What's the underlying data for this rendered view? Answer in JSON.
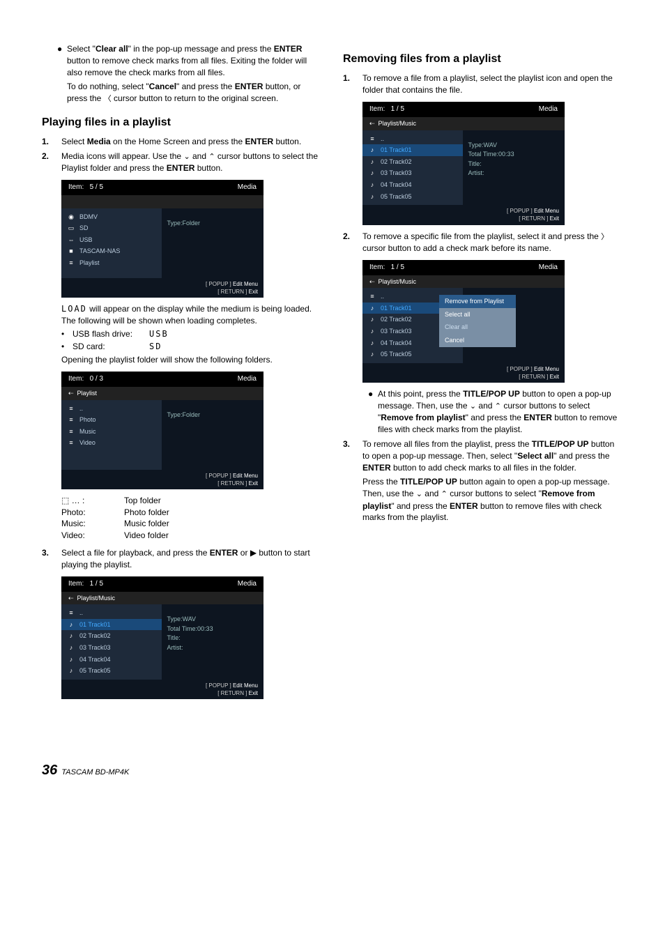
{
  "left": {
    "intro": {
      "b1a": "Select \"",
      "b1b": "Clear all",
      "b1c": "\" in the pop-up message and press the ",
      "b1d": "ENTER",
      "b1e": " button to remove check marks from all files. Exiting the folder will also remove the check marks from all files.",
      "b2a": "To do nothing, select \"",
      "b2b": "Cancel",
      "b2c": "\" and press the ",
      "b2d": "ENTER",
      "b2e": " button, or press the ",
      "b2f": " cursor button to return to the original screen."
    },
    "h1": "Playing files in a playlist",
    "s1": {
      "n": "1.",
      "a": "Select ",
      "b": "Media",
      "c": " on the Home Screen and press the ",
      "d": "ENTER",
      "e": " button."
    },
    "s2": {
      "n": "2.",
      "a": "Media icons will appear. Use the ",
      "b": " and ",
      "c": " cursor buttons to select the Playlist folder and press the ",
      "d": "ENTER",
      "e": " button."
    },
    "scr1": {
      "item": "Item:",
      "count": "5 / 5",
      "media": "Media",
      "rows": [
        {
          "ic": "◉",
          "tx": "BDMV"
        },
        {
          "ic": "▭",
          "tx": "SD"
        },
        {
          "ic": "⇔",
          "tx": "USB"
        },
        {
          "ic": "■",
          "tx": "TASCAM-NAS"
        },
        {
          "ic": "≡",
          "tx": "Playlist"
        }
      ],
      "rtype": "Type:Folder",
      "f1": "[ POPUP ]",
      "f1b": "Edit Menu",
      "f2": "[ RETURN ]",
      "f2b": "Exit"
    },
    "after1a": "",
    "load": "LOAD",
    "after1b": " will appear on the display while the medium is being loaded. The following will be shown when loading completes.",
    "usb1": "USB flash drive:",
    "usb2": "USB",
    "sd1": "SD card:",
    "sd2": "SD",
    "after2": "Opening the playlist folder will show the following folders.",
    "scr2": {
      "item": "Item:",
      "count": "0 / 3",
      "media": "Media",
      "bc": "Playlist",
      "rows": [
        {
          "ic": "≡",
          "tx": ".."
        },
        {
          "ic": "≡",
          "tx": "Photo"
        },
        {
          "ic": "≡",
          "tx": "Music"
        },
        {
          "ic": "≡",
          "tx": "Video"
        }
      ],
      "rtype": "Type:Folder",
      "f1": "[ POPUP ]",
      "f1b": "Edit Menu",
      "f2": "[ RETURN ]",
      "f2b": "Exit"
    },
    "tbl": [
      {
        "a": "⬚ … :",
        "b": "Top folder"
      },
      {
        "a": "Photo:",
        "b": "Photo folder"
      },
      {
        "a": "Music:",
        "b": "Music folder"
      },
      {
        "a": "Video:",
        "b": "Video folder"
      }
    ],
    "s3": {
      "n": "3.",
      "a": "Select a file for playback, and press the ",
      "b": "ENTER",
      "c": " or ",
      "d": " button to start playing the playlist."
    },
    "scr3": {
      "item": "Item:",
      "count": "1 / 5",
      "media": "Media",
      "bc": "Playlist/Music",
      "rows": [
        {
          "ic": "≡",
          "tx": ".."
        },
        {
          "ic": "♪",
          "tx": "01 Track01",
          "sel": true
        },
        {
          "ic": "♪",
          "tx": "02 Track02"
        },
        {
          "ic": "♪",
          "tx": "03 Track03"
        },
        {
          "ic": "♪",
          "tx": "04 Track04"
        },
        {
          "ic": "♪",
          "tx": "05 Track05"
        }
      ],
      "r": [
        "Type:WAV",
        "Total Time:00:33",
        "Title:",
        "Artist:"
      ],
      "f1": "[ POPUP ]",
      "f1b": "Edit Menu",
      "f2": "[ RETURN ]",
      "f2b": "Exit"
    }
  },
  "right": {
    "h1": "Removing files from a playlist",
    "s1": {
      "n": "1.",
      "a": "To remove a file from a playlist, select the playlist icon and open the folder that contains the file."
    },
    "scr1": {
      "item": "Item:",
      "count": "1 / 5",
      "media": "Media",
      "bc": "Playlist/Music",
      "rows": [
        {
          "ic": "≡",
          "tx": ".."
        },
        {
          "ic": "♪",
          "tx": "01 Track01",
          "sel": true
        },
        {
          "ic": "♪",
          "tx": "02 Track02"
        },
        {
          "ic": "♪",
          "tx": "03 Track03"
        },
        {
          "ic": "♪",
          "tx": "04 Track04"
        },
        {
          "ic": "♪",
          "tx": "05 Track05"
        }
      ],
      "r": [
        "Type:WAV",
        "Total Time:00:33",
        "Title:",
        "Artist:"
      ],
      "f1": "[ POPUP ]",
      "f1b": "Edit Menu",
      "f2": "[ RETURN ]",
      "f2b": "Exit"
    },
    "s2": {
      "n": "2.",
      "a": "To remove a specific file from the playlist, select it and press the ",
      "b": " cursor button to add a check mark before its name."
    },
    "scr2": {
      "item": "Item:",
      "count": "1 / 5",
      "media": "Media",
      "bc": "Playlist/Music",
      "rows": [
        {
          "ic": "≡",
          "tx": ".."
        },
        {
          "ic": "♪",
          "tx": "01 Track01",
          "sel": true
        },
        {
          "ic": "♪",
          "tx": "02 Track02"
        },
        {
          "ic": "♪",
          "tx": "03 Track03"
        },
        {
          "ic": "♪",
          "tx": "04 Track04"
        },
        {
          "ic": "♪",
          "tx": "05 Track05"
        }
      ],
      "popup": [
        {
          "t": "Remove from Playlist",
          "sel": true
        },
        {
          "t": "Select all"
        },
        {
          "t": "Clear all",
          "dim": true
        },
        {
          "t": "Cancel"
        }
      ],
      "r": [
        "Type:WAV",
        "Total Time:00:33",
        "Title:",
        "Artist:"
      ],
      "f1": "[ POPUP ]",
      "f1b": "Edit Menu",
      "f2": "[ RETURN ]",
      "f2b": "Exit"
    },
    "b1": {
      "a": "At this point, press the ",
      "b": "TITLE/POP UP",
      "c": " button to open a pop-up message. Then, use the ",
      "d": " and ",
      "e": " cursor buttons to select \"",
      "f": "Remove from playlist",
      "g": "\" and press the ",
      "h": "ENTER",
      "i": " button to remove files with check marks from the playlist."
    },
    "s3": {
      "n": "3.",
      "a": "To remove all files from the playlist, press the ",
      "b": "TITLE/POP UP",
      "c": " button to open a pop-up message. Then, select \"",
      "d": "Select all",
      "e": "\" and press the ",
      "f": "ENTER",
      "g": " button to add check marks to all files in the folder.",
      "p2a": "Press the ",
      "p2b": "TITLE/POP UP",
      "p2c": " button again to open a pop-up message. Then, use the ",
      "p2d": " and ",
      "p2e": " cursor buttons to select \"",
      "p2f": "Remove from playlist",
      "p2g": "\" and press the ",
      "p2h": "ENTER",
      "p2i": " button to remove files with check marks from the playlist."
    }
  },
  "footer": {
    "pn": "36",
    "model": "TASCAM BD-MP4K"
  }
}
